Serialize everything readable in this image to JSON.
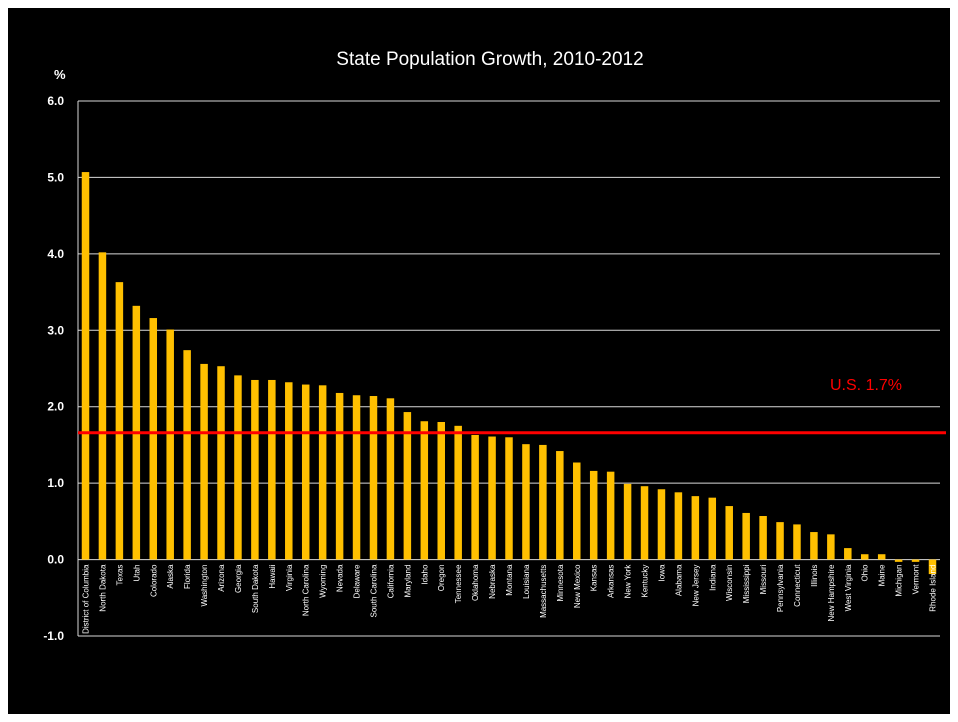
{
  "chart_data": {
    "type": "bar",
    "title": "State Population Growth, 2010-2012",
    "ylabel": "%",
    "xlabel": "",
    "ylim": [
      -1.0,
      6.0
    ],
    "yticks": [
      "6.0",
      "5.0",
      "4.0",
      "3.0",
      "2.0",
      "1.0",
      "0.0",
      "-1.0"
    ],
    "grid": true,
    "categories": [
      "District of Columbia",
      "North Dakota",
      "Texas",
      "Utah",
      "Colorado",
      "Alaska",
      "Florida",
      "Washington",
      "Arizona",
      "Georgia",
      "South Dakota",
      "Hawaii",
      "Virginia",
      "North Carolina",
      "Wyoming",
      "Nevada",
      "Delaware",
      "South Carolina",
      "California",
      "Maryland",
      "Idaho",
      "Oregon",
      "Tennessee",
      "Oklahoma",
      "Nebraska",
      "Montana",
      "Louisiana",
      "Massachusetts",
      "Minnesota",
      "New Mexico",
      "Kansas",
      "Arkansas",
      "New York",
      "Kentucky",
      "Iowa",
      "Alabama",
      "New Jersey",
      "Indiana",
      "Wisconsin",
      "Mississippi",
      "Missouri",
      "Pennsylvania",
      "Connecticut",
      "Illinois",
      "New Hampshire",
      "West Virginia",
      "Ohio",
      "Maine",
      "Michigan",
      "Vermont",
      "Rhode Island"
    ],
    "values": [
      5.07,
      4.02,
      3.63,
      3.32,
      3.16,
      3.01,
      2.74,
      2.56,
      2.53,
      2.41,
      2.35,
      2.35,
      2.32,
      2.29,
      2.28,
      2.18,
      2.15,
      2.14,
      2.11,
      1.93,
      1.81,
      1.8,
      1.75,
      1.63,
      1.61,
      1.6,
      1.51,
      1.5,
      1.42,
      1.27,
      1.16,
      1.15,
      0.99,
      0.96,
      0.92,
      0.88,
      0.83,
      0.81,
      0.7,
      0.61,
      0.57,
      0.49,
      0.46,
      0.36,
      0.33,
      0.15,
      0.07,
      0.07,
      -0.03,
      -0.03,
      -0.19
    ],
    "series_color": "#FFC000",
    "reference_line": {
      "value": 1.66,
      "label": "U.S. 1.7%",
      "color": "#FF0000"
    }
  }
}
